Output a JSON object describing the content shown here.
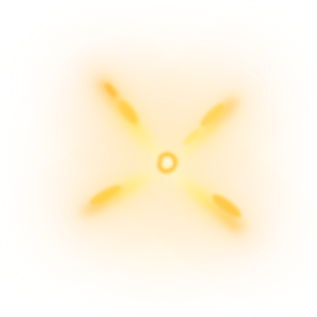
{
  "image": {
    "subject": "golden-flare-burst",
    "background_color": "#ffffff",
    "glow_color": "#fff1cf",
    "core_color": "#fff8c6",
    "ray_inner_color": "#ffe766",
    "ray_mid_color": "#ffbf2e",
    "ray_outer_color": "#ff9f26",
    "accent_color": "#ffcf49",
    "ray_count": 4
  }
}
